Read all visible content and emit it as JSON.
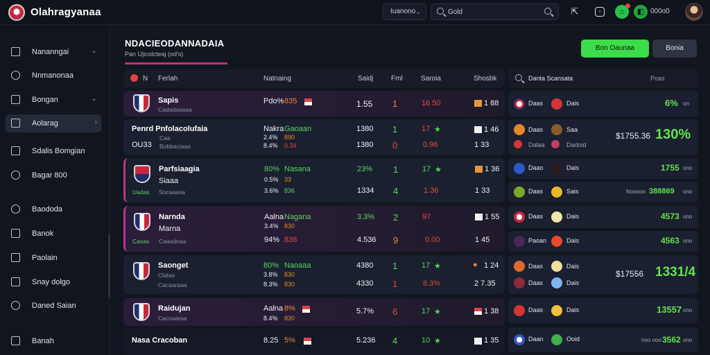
{
  "app": {
    "title": "Olahragyanaa"
  },
  "topbar": {
    "select_label": "Iuanono",
    "search_value": "Gold",
    "balance": "000o0"
  },
  "sidebar": {
    "items": [
      {
        "label": "Nananngai",
        "icon": "grid-icon",
        "chevron": true
      },
      {
        "label": "Nnmanonaa",
        "icon": "globe-icon",
        "chevron": false
      },
      {
        "label": "Bongan",
        "icon": "calendar-icon",
        "chevron": true
      },
      {
        "label": "Aolarag",
        "icon": "ticket-icon",
        "chevron": true,
        "active": true
      },
      {
        "label": "Sdalis Bomgian",
        "icon": "trophy-icon",
        "chevron": false
      },
      {
        "label": "Bagar 800",
        "icon": "chart-icon",
        "chevron": false
      },
      {
        "label": "Baododa",
        "icon": "tools-icon",
        "chevron": false
      },
      {
        "label": "Banok",
        "icon": "stats-icon",
        "chevron": false
      },
      {
        "label": "Paolain",
        "icon": "list-icon",
        "chevron": false
      },
      {
        "label": "Snay dolgo",
        "icon": "card-icon",
        "chevron": false
      },
      {
        "label": "Daned Saian",
        "icon": "link-icon",
        "chevron": false
      },
      {
        "label": "Banah",
        "icon": "upload-icon",
        "chevron": false
      }
    ]
  },
  "main": {
    "title": "NDACIEODANNADAIA",
    "subtitle": "Pan Ujicolcteaj (od's)",
    "primary_button": "Bon Oaunaa",
    "secondary_button": "Bonia"
  },
  "table": {
    "headers": [
      "N",
      "Ferlah",
      "Natnaing",
      "Saidj",
      "Fml",
      "Saroia",
      "Shosbk"
    ],
    "rows": [
      {
        "team": "Sapis",
        "team_sub": "Cadadaaaaa",
        "odds1": "Pdo%",
        "odds1b": "835",
        "val1": "1.55",
        "val2": "1",
        "val3": "16 50",
        "val4": "1 88"
      },
      {
        "team": "Penrd Pnfolacolufaia",
        "team_sub": "Caa",
        "line2": "OU33",
        "line2_sub": "Bobbaciaaa",
        "odds1": "Nakra",
        "odds1b": "Gaoaan",
        "odds2": "2.4%",
        "odds2b": "890",
        "odds3": "8.4%",
        "odds3b": "0.34",
        "val1": "1380",
        "val1b": "1380",
        "val2": "1",
        "val2b": "0",
        "val3": "17",
        "val3b": "0.96",
        "val4": "1 46",
        "val4b": "1 33"
      },
      {
        "team": "Parfsiaagia",
        "team_sub": "Siaaa",
        "line2": "Uadas",
        "line2_sub": "Socaaasa",
        "odds1": "80%",
        "odds1b": "Nasana",
        "odds2": "0.5%",
        "odds2b": "33",
        "odds3": "3.6%",
        "odds3b": "836",
        "val1": "23%",
        "val1b": "1334",
        "val2": "1",
        "val2b": "4",
        "val3": "17",
        "val3b": "1.36",
        "val4": "1 36",
        "val4b": "1 33"
      },
      {
        "team": "Narnda",
        "team_sub": "Marna",
        "line2": "Casas",
        "line2_sub": "Caaadnaa",
        "odds1": "Aalna",
        "odds1b": "Nagana",
        "odds2": "3.4%",
        "odds2b": "830",
        "odds3": "94%",
        "odds3b": "836",
        "val1": "3.3%",
        "val1b": "4.536",
        "val2": "2",
        "val2b": "9",
        "val3": "97",
        "val3b": "0.00",
        "val4": "1 55",
        "val4b": "1 45"
      },
      {
        "team": "Saonget",
        "team_sub": "Clatas",
        "line2": "Cacaaraaa",
        "odds1": "80%",
        "odds1b": "Naoaaa",
        "odds2": "3.8%",
        "odds2b": "830",
        "odds3": "8.3%",
        "odds3b": "830",
        "val1": "4380",
        "val1b": "4330",
        "val2": "1",
        "val2b": "1",
        "val3": "17",
        "val3b": "8.3%",
        "val4": "1 24",
        "val4b": "2 7.35"
      },
      {
        "team": "Raidujan",
        "team_sub": "Cacoaaraa",
        "odds1": "Aalna",
        "odds1b": "8%",
        "odds2": "8.4%",
        "odds2b": "830",
        "val1": "5.7%",
        "val2": "6",
        "val3": "17",
        "val4": "1 38"
      },
      {
        "team": "Nasa Cracoban",
        "odds1": "8.25",
        "odds1b": "5%",
        "val1": "5.236",
        "val2": "4",
        "val3": "10",
        "val4": "1 35"
      }
    ]
  },
  "right_panel": {
    "header": "Danta Scansata",
    "header_right": "Poas",
    "cards": [
      {
        "a": "Daas",
        "b": "Dais",
        "odds": "6%",
        "sub": "on"
      },
      {
        "a": "Daas",
        "b": "Saa",
        "a2": "Dalaa",
        "b2": "Dadoid",
        "price": "$1755.36",
        "odds": "130%"
      },
      {
        "a": "Daao",
        "b": "Dais",
        "odds": "1755",
        "sub": "ono"
      },
      {
        "a": "Daas",
        "b": "Sais",
        "odds": "388869",
        "sub": "Nooooo",
        "sub2": "ono"
      },
      {
        "a": "Daas",
        "b": "Dais",
        "odds": "4573",
        "sub": "ono"
      },
      {
        "a": "Paoan",
        "b": "Dais",
        "odds": "4563",
        "sub": "ono"
      },
      {
        "a": "Daas",
        "b": "Dais",
        "a2": "Daas",
        "b2": "Dais",
        "price": "$17556",
        "odds": "1331/4"
      },
      {
        "a": "Daas",
        "b": "Dais",
        "odds": "13557",
        "sub": "ono"
      },
      {
        "a": "Daan",
        "b": "Ooid",
        "odds": "3562",
        "sub": "noo ooo",
        "sub2": "ono"
      }
    ]
  },
  "colors": {
    "accent_green": "#3ddc4a",
    "accent_pink": "#c72f7a",
    "danger": "#e5483f",
    "background": "#12161f"
  }
}
